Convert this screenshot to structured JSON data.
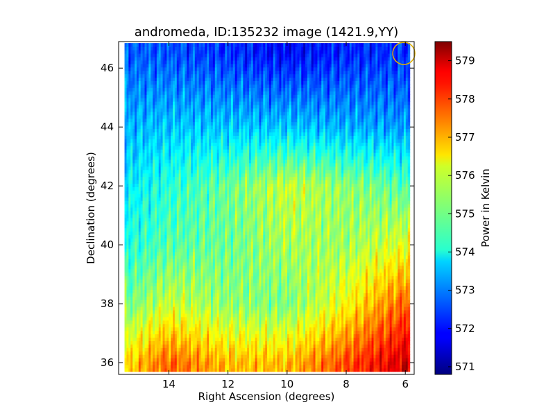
{
  "chart_data": {
    "type": "heatmap",
    "title": "andromeda, ID:135232 image (1421.9,YY)",
    "xlabel": "Right Ascension (degrees)",
    "ylabel": "Declination (degrees)",
    "xlim": [
      15.7,
      5.7
    ],
    "ylim": [
      35.6,
      46.9
    ],
    "x_ticks": [
      14,
      12,
      10,
      8,
      6
    ],
    "y_ticks": [
      36,
      38,
      40,
      42,
      44,
      46
    ],
    "colorbar": {
      "label": "Power in Kelvin",
      "range": [
        570.8,
        579.5
      ],
      "ticks": [
        571,
        572,
        573,
        574,
        575,
        576,
        577,
        578,
        579
      ],
      "colormap": "jet"
    },
    "beam_circle": {
      "ra": 6.05,
      "dec": 46.5,
      "color": "#e0b000"
    },
    "grid": false,
    "field_grid": {
      "ra": [
        15.5,
        14,
        12,
        10,
        8,
        6
      ],
      "dec": [
        36,
        38,
        40,
        42,
        44,
        46.5
      ],
      "values": [
        [
          576.5,
          577.6,
          576.8,
          576.8,
          577.8,
          578.8
        ],
        [
          575.0,
          575.8,
          575.3,
          575.1,
          576.2,
          577.6
        ],
        [
          574.3,
          574.8,
          575.0,
          575.5,
          575.4,
          576.0
        ],
        [
          573.9,
          574.4,
          575.0,
          575.8,
          575.3,
          574.8
        ],
        [
          573.4,
          573.6,
          573.6,
          573.6,
          573.4,
          573.2
        ],
        [
          572.7,
          572.6,
          572.3,
          571.9,
          572.2,
          572.3
        ]
      ]
    }
  }
}
